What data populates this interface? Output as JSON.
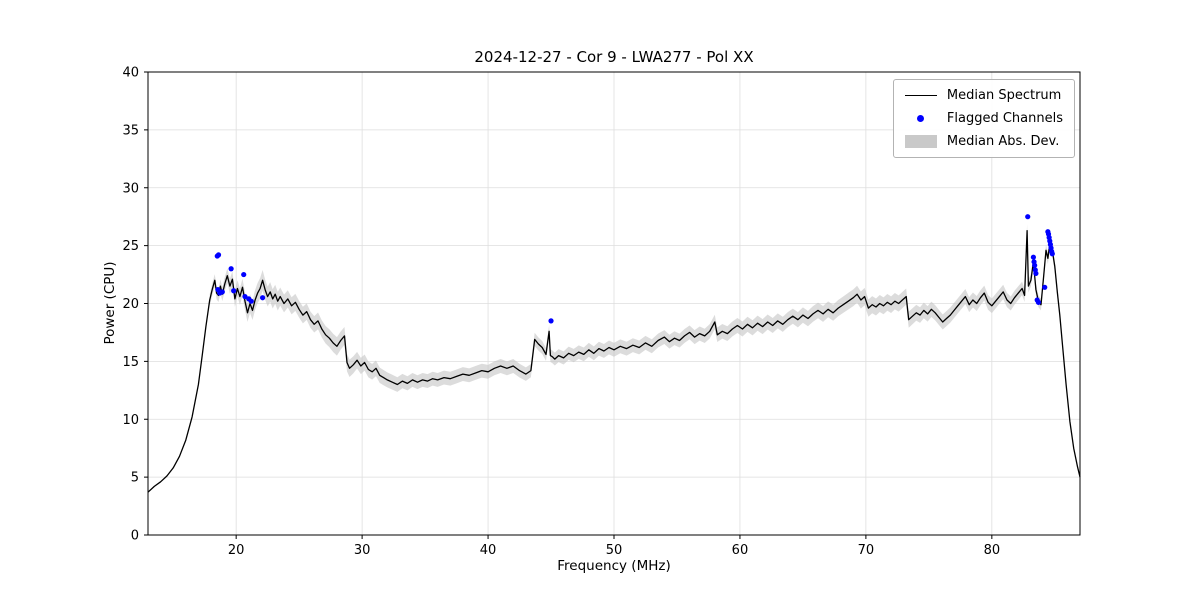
{
  "chart_data": {
    "type": "line",
    "title": "2024-12-27 - Cor 9 - LWA277 - Pol XX",
    "xlabel": "Frequency (MHz)",
    "ylabel": "Power (CPU)",
    "xlim": [
      13,
      87
    ],
    "ylim": [
      0,
      40
    ],
    "xticks": [
      20,
      30,
      40,
      50,
      60,
      70,
      80
    ],
    "yticks": [
      0,
      5,
      10,
      15,
      20,
      25,
      30,
      35,
      40
    ],
    "grid": true,
    "colors": {
      "line": "#000000",
      "scatter": "#0000ff",
      "band": "#c4c4c4",
      "grid": "#dedede",
      "spine": "#000000"
    },
    "legend": {
      "position": "upper right",
      "entries": [
        {
          "label": "Median Spectrum",
          "type": "line",
          "color": "#000000"
        },
        {
          "label": "Flagged Channels",
          "type": "scatter",
          "color": "#0000ff"
        },
        {
          "label": "Median Abs. Dev.",
          "type": "band",
          "color": "#c9c9c9"
        }
      ]
    },
    "series": [
      {
        "name": "Median Spectrum",
        "type": "line",
        "color": "#000000",
        "x": [
          13.0,
          13.5,
          14.0,
          14.5,
          15.0,
          15.5,
          16.0,
          16.5,
          17.0,
          17.3,
          17.6,
          17.9,
          18.1,
          18.3,
          18.45,
          18.6,
          18.75,
          18.9,
          19.1,
          19.3,
          19.5,
          19.7,
          19.9,
          20.1,
          20.3,
          20.5,
          20.7,
          20.9,
          21.1,
          21.3,
          21.5,
          21.7,
          21.9,
          22.1,
          22.3,
          22.5,
          22.7,
          22.9,
          23.1,
          23.3,
          23.5,
          23.8,
          24.1,
          24.4,
          24.7,
          25.0,
          25.3,
          25.6,
          25.9,
          26.2,
          26.5,
          26.8,
          27.1,
          27.4,
          27.7,
          28.0,
          28.3,
          28.6,
          28.8,
          29.0,
          29.3,
          29.6,
          29.9,
          30.2,
          30.5,
          30.8,
          31.1,
          31.4,
          31.7,
          32.0,
          32.4,
          32.8,
          33.2,
          33.6,
          34.0,
          34.4,
          34.8,
          35.2,
          35.6,
          36.0,
          36.5,
          37.0,
          37.5,
          38.0,
          38.5,
          39.0,
          39.5,
          40.0,
          40.5,
          41.0,
          41.5,
          42.0,
          42.5,
          43.0,
          43.4,
          43.7,
          44.0,
          44.3,
          44.6,
          44.85,
          44.95,
          45.1,
          45.3,
          45.6,
          46.0,
          46.4,
          46.8,
          47.2,
          47.6,
          48.0,
          48.4,
          48.8,
          49.2,
          49.6,
          50.0,
          50.5,
          51.0,
          51.5,
          52.0,
          52.5,
          53.0,
          53.5,
          54.0,
          54.4,
          54.8,
          55.2,
          55.6,
          56.0,
          56.4,
          56.8,
          57.2,
          57.6,
          58.0,
          58.2,
          58.6,
          59.0,
          59.4,
          59.8,
          60.2,
          60.6,
          61.0,
          61.4,
          61.8,
          62.2,
          62.6,
          63.0,
          63.4,
          63.8,
          64.2,
          64.6,
          65.0,
          65.4,
          65.8,
          66.2,
          66.6,
          67.0,
          67.4,
          67.8,
          68.2,
          68.6,
          69.0,
          69.3,
          69.6,
          69.9,
          70.2,
          70.5,
          70.8,
          71.1,
          71.4,
          71.7,
          72.0,
          72.3,
          72.6,
          72.9,
          73.2,
          73.4,
          73.7,
          74.0,
          74.3,
          74.6,
          74.9,
          75.2,
          75.5,
          75.8,
          76.1,
          76.4,
          76.7,
          77.0,
          77.3,
          77.6,
          77.9,
          78.2,
          78.5,
          78.8,
          79.1,
          79.4,
          79.7,
          80.0,
          80.3,
          80.6,
          80.9,
          81.2,
          81.5,
          81.8,
          82.1,
          82.4,
          82.6,
          82.8,
          82.9,
          83.1,
          83.3,
          83.5,
          83.7,
          83.9,
          84.1,
          84.3,
          84.45,
          84.6,
          84.8,
          85.0,
          85.2,
          85.4,
          85.6,
          85.9,
          86.2,
          86.5,
          86.8,
          87.0
        ],
        "y": [
          3.7,
          4.2,
          4.6,
          5.1,
          5.8,
          6.8,
          8.2,
          10.2,
          13.0,
          15.5,
          18.0,
          20.3,
          21.2,
          22.0,
          20.9,
          20.7,
          21.5,
          20.8,
          21.7,
          22.4,
          21.5,
          22.1,
          20.4,
          21.3,
          20.6,
          21.4,
          20.2,
          19.2,
          20.0,
          19.4,
          20.3,
          20.9,
          21.3,
          22.0,
          21.2,
          20.6,
          21.0,
          20.4,
          20.8,
          20.2,
          20.6,
          20.0,
          20.4,
          19.8,
          20.1,
          19.5,
          19.0,
          19.3,
          18.6,
          18.2,
          18.5,
          17.8,
          17.3,
          17.0,
          16.6,
          16.3,
          16.8,
          17.2,
          14.9,
          14.4,
          14.7,
          15.1,
          14.6,
          14.9,
          14.3,
          14.1,
          14.4,
          13.8,
          13.6,
          13.4,
          13.2,
          13.0,
          13.3,
          13.1,
          13.4,
          13.2,
          13.4,
          13.3,
          13.5,
          13.4,
          13.6,
          13.5,
          13.7,
          13.9,
          13.8,
          14.0,
          14.2,
          14.1,
          14.4,
          14.6,
          14.4,
          14.6,
          14.2,
          13.9,
          14.2,
          16.9,
          16.5,
          16.2,
          15.6,
          17.6,
          15.5,
          15.4,
          15.2,
          15.5,
          15.3,
          15.7,
          15.5,
          15.8,
          15.6,
          16.0,
          15.7,
          16.1,
          15.9,
          16.2,
          16.0,
          16.3,
          16.1,
          16.4,
          16.2,
          16.6,
          16.3,
          16.8,
          17.1,
          16.7,
          17.0,
          16.8,
          17.2,
          17.5,
          17.1,
          17.4,
          17.2,
          17.6,
          18.4,
          17.3,
          17.6,
          17.4,
          17.8,
          18.1,
          17.8,
          18.2,
          17.9,
          18.3,
          18.0,
          18.4,
          18.1,
          18.5,
          18.2,
          18.6,
          18.9,
          18.6,
          19.0,
          18.7,
          19.1,
          19.4,
          19.1,
          19.5,
          19.2,
          19.6,
          19.9,
          20.2,
          20.5,
          20.8,
          20.3,
          20.6,
          19.6,
          19.9,
          19.7,
          20.0,
          19.8,
          20.1,
          19.9,
          20.2,
          20.0,
          20.3,
          20.6,
          18.6,
          18.9,
          19.2,
          19.0,
          19.4,
          19.1,
          19.5,
          19.2,
          18.8,
          18.4,
          18.7,
          19.0,
          19.4,
          19.8,
          20.2,
          20.6,
          19.9,
          20.3,
          20.0,
          20.5,
          20.9,
          20.1,
          19.8,
          20.2,
          20.6,
          21.0,
          20.3,
          20.0,
          20.5,
          20.9,
          21.3,
          20.7,
          26.3,
          21.5,
          22.0,
          23.6,
          21.2,
          20.2,
          19.9,
          22.2,
          24.6,
          23.9,
          25.2,
          24.6,
          23.2,
          21.0,
          19.0,
          16.5,
          13.0,
          9.8,
          7.5,
          5.9,
          5.0
        ]
      },
      {
        "name": "Flagged Channels",
        "type": "scatter",
        "color": "#0000ff",
        "x": [
          18.5,
          18.6,
          18.55,
          18.7,
          18.9,
          19.6,
          19.8,
          20.6,
          20.7,
          21.0,
          21.2,
          22.1,
          45.0,
          82.85,
          83.3,
          83.35,
          83.4,
          83.45,
          83.5,
          83.6,
          83.7,
          84.2,
          84.45,
          84.5,
          84.55,
          84.6,
          84.65,
          84.7,
          84.75,
          84.8
        ],
        "y": [
          24.1,
          24.2,
          21.2,
          20.9,
          21.0,
          23.0,
          21.1,
          22.5,
          20.6,
          20.4,
          20.2,
          20.5,
          18.5,
          27.5,
          24.0,
          23.6,
          23.3,
          22.9,
          22.6,
          20.3,
          20.1,
          21.4,
          26.2,
          26.0,
          25.7,
          25.4,
          25.1,
          24.8,
          24.5,
          24.3
        ]
      },
      {
        "name": "Median Abs. Dev.",
        "type": "band",
        "color": "#c4c4c4",
        "opacity": 0.6,
        "x_range": [
          17.9,
          85.4
        ],
        "halfwidth_points": [
          [
            17.9,
            0.5
          ],
          [
            20,
            0.7
          ],
          [
            22,
            0.9
          ],
          [
            24,
            0.75
          ],
          [
            26,
            0.7
          ],
          [
            28,
            0.8
          ],
          [
            30,
            0.7
          ],
          [
            32,
            0.65
          ],
          [
            34,
            0.6
          ],
          [
            38,
            0.6
          ],
          [
            42,
            0.6
          ],
          [
            45,
            0.55
          ],
          [
            48,
            0.6
          ],
          [
            52,
            0.6
          ],
          [
            56,
            0.6
          ],
          [
            60,
            0.65
          ],
          [
            64,
            0.65
          ],
          [
            68,
            0.7
          ],
          [
            70,
            0.75
          ],
          [
            73,
            0.7
          ],
          [
            76,
            0.65
          ],
          [
            79,
            0.65
          ],
          [
            82,
            0.6
          ],
          [
            84,
            0.5
          ],
          [
            85.4,
            0.45
          ]
        ]
      }
    ]
  }
}
